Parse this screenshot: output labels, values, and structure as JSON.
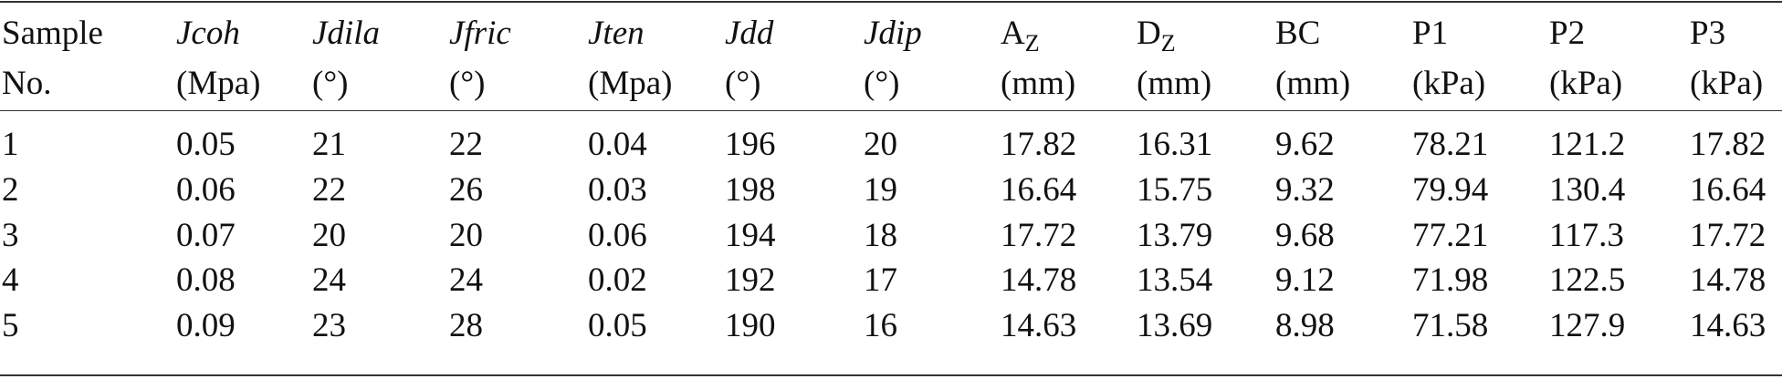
{
  "table": {
    "headers": [
      {
        "name": "Sample",
        "unit": "No.",
        "italic": false
      },
      {
        "name": "Jcoh",
        "unit": "(Mpa)",
        "italic": true
      },
      {
        "name": "Jdila",
        "unit": "(°)",
        "italic": true
      },
      {
        "name": "Jfric",
        "unit": "(°)",
        "italic": true
      },
      {
        "name": "Jten",
        "unit": "(Mpa)",
        "italic": true
      },
      {
        "name": "Jdd",
        "unit": "(°)",
        "italic": true
      },
      {
        "name": "Jdip",
        "unit": "(°)",
        "italic": true
      },
      {
        "name": "A",
        "sub": "Z",
        "unit": "(mm)",
        "italic": false
      },
      {
        "name": "D",
        "sub": "Z",
        "unit": "(mm)",
        "italic": false
      },
      {
        "name": "BC",
        "unit": "(mm)",
        "italic": false
      },
      {
        "name": "P1",
        "unit": "(kPa)",
        "italic": false
      },
      {
        "name": "P2",
        "unit": "(kPa)",
        "italic": false
      },
      {
        "name": "P3",
        "unit": "(kPa)",
        "italic": false
      }
    ],
    "rows": [
      [
        1,
        0.05,
        21,
        22,
        0.04,
        196,
        20,
        17.82,
        16.31,
        9.62,
        78.21,
        121.2,
        17.82
      ],
      [
        2,
        0.06,
        22,
        26,
        0.03,
        198,
        19,
        16.64,
        15.75,
        9.32,
        79.94,
        130.4,
        16.64
      ],
      [
        3,
        0.07,
        20,
        20,
        0.06,
        194,
        18,
        17.72,
        13.79,
        9.68,
        77.21,
        117.3,
        17.72
      ],
      [
        4,
        0.08,
        24,
        24,
        0.02,
        192,
        17,
        14.78,
        13.54,
        9.12,
        71.98,
        122.5,
        14.78
      ],
      [
        5,
        0.09,
        23,
        28,
        0.05,
        190,
        16,
        14.63,
        13.69,
        8.98,
        71.58,
        127.9,
        14.63
      ]
    ]
  }
}
